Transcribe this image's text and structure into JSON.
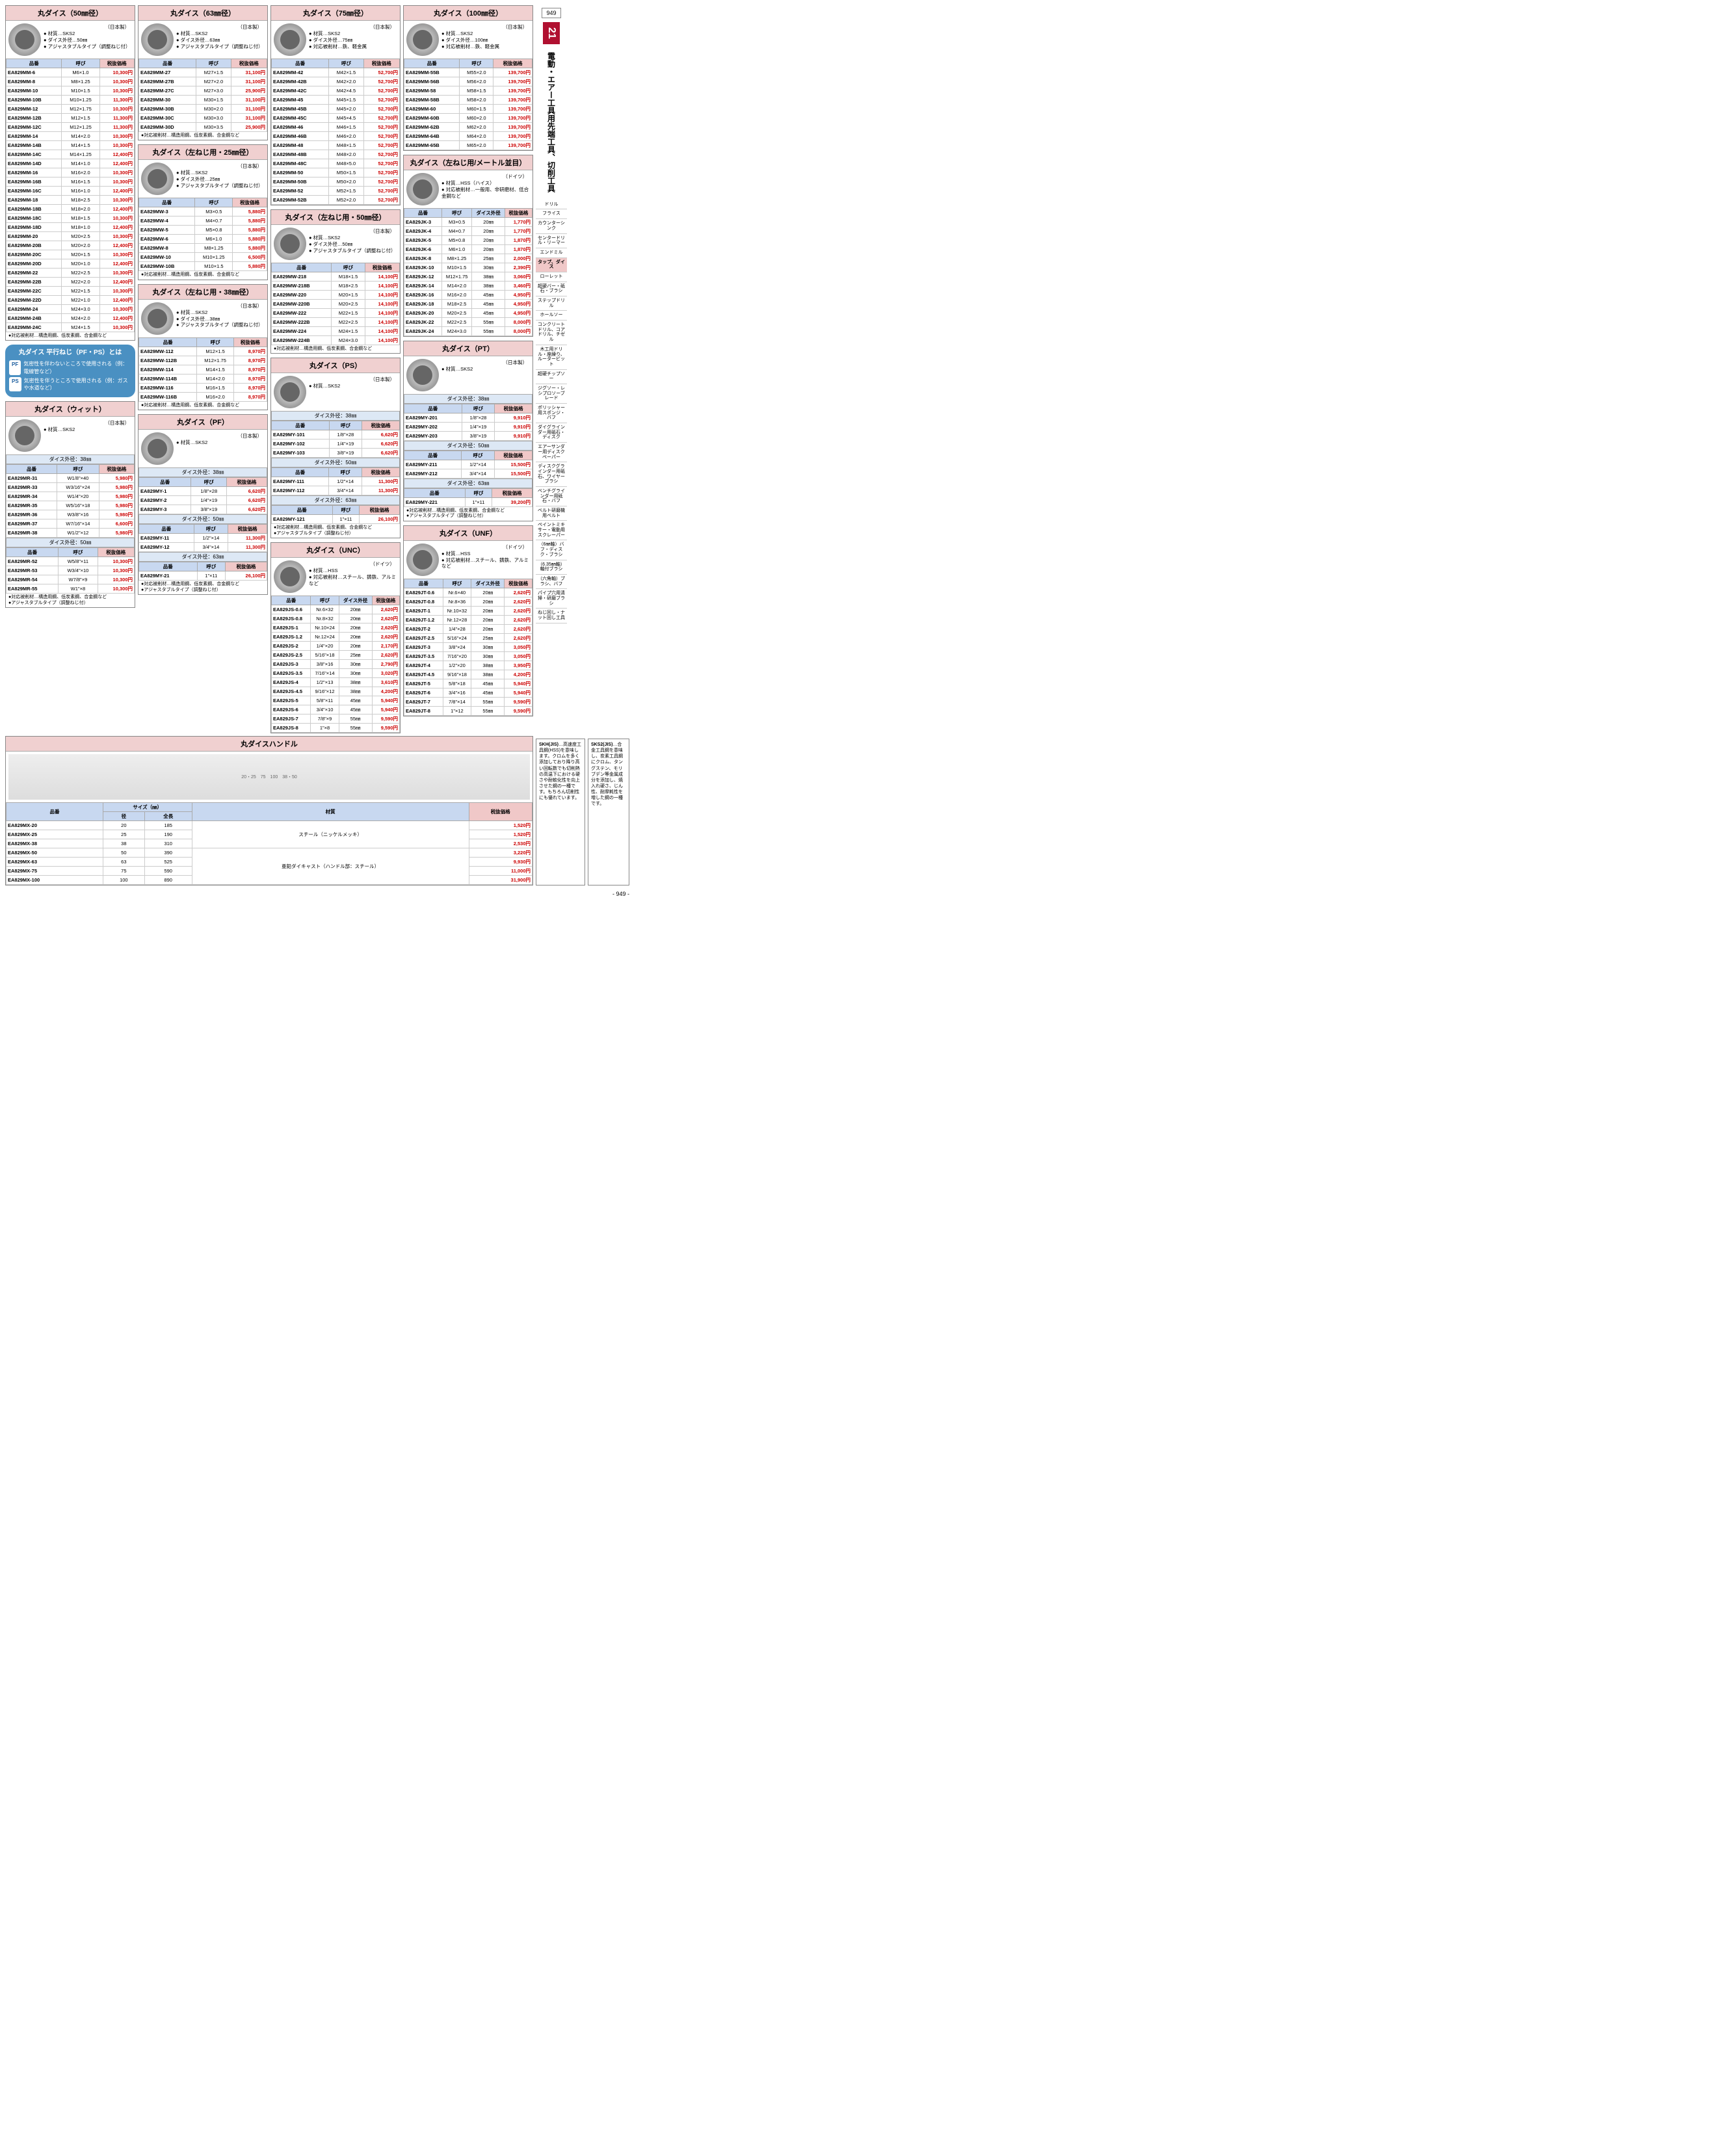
{
  "page_number_top": "949",
  "page_number_bottom": "- 949 -",
  "side_tab_num": "21",
  "side_tab_text": "電動・エアー工具用先端工具、切削工具",
  "side_categories": [
    "ドリル",
    "フライス",
    "カウンターシンク",
    "センタードリル・リーマー",
    "エンドミル",
    {
      "label": "タップ、ダイス",
      "active": true
    },
    "ローレット",
    "超硬バー・砥石・ブラシ",
    "ステップドリル",
    "ホールソー",
    "コンクリートドリル、コアドリル、チゼル",
    "木工用ドリル・座繰り、ルータービット",
    "超硬チップソー",
    "ジグソー・レシプロソーブレード",
    "ポリッシャー用スポンジ・バフ",
    "ダイグラインダー用砥石・ディスク",
    "エアーサンダー用ディスクペーパー",
    "ディスクグラインダー用砥石、ワイヤーブラシ",
    "ベンチグラインダー用砥石・バフ",
    "ベルト研磨機用ベルト",
    "ペイントミキサー・電動用スクレーパー",
    "（6㎜軸）バフ・ディスク・ブラシ",
    "（6.35㎜軸）軸付ブラシ",
    "（六角軸）ブラシ、バフ",
    "パイプ穴用清掃・研磨ブラシ",
    "ねじ回し・ナット回し工具"
  ],
  "columns": {
    "code": "品番",
    "spec": "呼び",
    "price": "税抜価格",
    "od": "ダイス外径"
  },
  "origin_jp": "（日本製）",
  "origin_de": "（ドイツ）",
  "blocks": {
    "d50": {
      "title": "丸ダイス（50㎜径）",
      "bullets": "● 材質…SKS2\n● ダイス外径…50㎜\n● アジャスタブルタイプ（調整ねじ付）",
      "note": "●対応被削材…構造用鋼、低炭素鋼、合金鋼など",
      "rows": [
        [
          "EA829MM-6",
          "M6×1.0",
          "10,300"
        ],
        [
          "EA829MM-8",
          "M8×1.25",
          "10,300"
        ],
        [
          "EA829MM-10",
          "M10×1.5",
          "10,300"
        ],
        [
          "EA829MM-10B",
          "M10×1.25",
          "11,300"
        ],
        [
          "EA829MM-12",
          "M12×1.75",
          "10,300"
        ],
        [
          "EA829MM-12B",
          "M12×1.5",
          "11,300"
        ],
        [
          "EA829MM-12C",
          "M12×1.25",
          "11,300"
        ],
        [
          "EA829MM-14",
          "M14×2.0",
          "10,300"
        ],
        [
          "EA829MM-14B",
          "M14×1.5",
          "10,300"
        ],
        [
          "EA829MM-14C",
          "M14×1.25",
          "12,400"
        ],
        [
          "EA829MM-14D",
          "M14×1.0",
          "12,400"
        ],
        [
          "EA829MM-16",
          "M16×2.0",
          "10,300"
        ],
        [
          "EA829MM-16B",
          "M16×1.5",
          "10,300"
        ],
        [
          "EA829MM-16C",
          "M16×1.0",
          "12,400"
        ],
        [
          "EA829MM-18",
          "M18×2.5",
          "10,300"
        ],
        [
          "EA829MM-18B",
          "M18×2.0",
          "12,400"
        ],
        [
          "EA829MM-18C",
          "M18×1.5",
          "10,300"
        ],
        [
          "EA829MM-18D",
          "M18×1.0",
          "12,400"
        ],
        [
          "EA829MM-20",
          "M20×2.5",
          "10,300"
        ],
        [
          "EA829MM-20B",
          "M20×2.0",
          "12,400"
        ],
        [
          "EA829MM-20C",
          "M20×1.5",
          "10,300"
        ],
        [
          "EA829MM-20D",
          "M20×1.0",
          "12,400"
        ],
        [
          "EA829MM-22",
          "M22×2.5",
          "10,300"
        ],
        [
          "EA829MM-22B",
          "M22×2.0",
          "12,400"
        ],
        [
          "EA829MM-22C",
          "M22×1.5",
          "10,300"
        ],
        [
          "EA829MM-22D",
          "M22×1.0",
          "12,400"
        ],
        [
          "EA829MM-24",
          "M24×3.0",
          "10,300"
        ],
        [
          "EA829MM-24B",
          "M24×2.0",
          "12,400"
        ],
        [
          "EA829MM-24C",
          "M24×1.5",
          "10,300"
        ]
      ]
    },
    "d63": {
      "title": "丸ダイス（63㎜径）",
      "bullets": "● 材質…SKS2\n● ダイス外径…63㎜\n● アジャスタブルタイプ（調整ねじ付）",
      "note": "●対応被削材…構造用鋼、低炭素鋼、合金鋼など",
      "rows": [
        [
          "EA829MM-27",
          "M27×1.5",
          "31,100"
        ],
        [
          "EA829MM-27B",
          "M27×2.0",
          "31,100"
        ],
        [
          "EA829MM-27C",
          "M27×3.0",
          "25,900"
        ],
        [
          "EA829MM-30",
          "M30×1.5",
          "31,100"
        ],
        [
          "EA829MM-30B",
          "M30×2.0",
          "31,100"
        ],
        [
          "EA829MM-30C",
          "M30×3.0",
          "31,100"
        ],
        [
          "EA829MM-30D",
          "M30×3.5",
          "25,900"
        ]
      ]
    },
    "d75": {
      "title": "丸ダイス（75㎜径）",
      "bullets": "● 材質…SKS2\n● ダイス外径…75㎜\n● 対応被削材…鉄、軽金属",
      "rows": [
        [
          "EA829MM-42",
          "M42×1.5",
          "52,700"
        ],
        [
          "EA829MM-42B",
          "M42×2.0",
          "52,700"
        ],
        [
          "EA829MM-42C",
          "M42×4.5",
          "52,700"
        ],
        [
          "EA829MM-45",
          "M45×1.5",
          "52,700"
        ],
        [
          "EA829MM-45B",
          "M45×2.0",
          "52,700"
        ],
        [
          "EA829MM-45C",
          "M45×4.5",
          "52,700"
        ],
        [
          "EA829MM-46",
          "M46×1.5",
          "52,700"
        ],
        [
          "EA829MM-46B",
          "M46×2.0",
          "52,700"
        ],
        [
          "EA829MM-48",
          "M48×1.5",
          "52,700"
        ],
        [
          "EA829MM-48B",
          "M48×2.0",
          "52,700"
        ],
        [
          "EA829MM-48C",
          "M48×5.0",
          "52,700"
        ],
        [
          "EA829MM-50",
          "M50×1.5",
          "52,700"
        ],
        [
          "EA829MM-50B",
          "M50×2.0",
          "52,700"
        ],
        [
          "EA829MM-52",
          "M52×1.5",
          "52,700"
        ],
        [
          "EA829MM-52B",
          "M52×2.0",
          "52,700"
        ]
      ]
    },
    "d100": {
      "title": "丸ダイス（100㎜径）",
      "bullets": "● 材質…SKS2\n● ダイス外径…100㎜\n● 対応被削材…鉄、軽金属",
      "rows": [
        [
          "EA829MM-55B",
          "M55×2.0",
          "139,700"
        ],
        [
          "EA829MM-56B",
          "M56×2.0",
          "139,700"
        ],
        [
          "EA829MM-58",
          "M58×1.5",
          "139,700"
        ],
        [
          "EA829MM-58B",
          "M58×2.0",
          "139,700"
        ],
        [
          "EA829MM-60",
          "M60×1.5",
          "139,700"
        ],
        [
          "EA829MM-60B",
          "M60×2.0",
          "139,700"
        ],
        [
          "EA829MM-62B",
          "M62×2.0",
          "139,700"
        ],
        [
          "EA829MM-64B",
          "M64×2.0",
          "139,700"
        ],
        [
          "EA829MM-65B",
          "M65×2.0",
          "139,700"
        ]
      ]
    },
    "L25": {
      "title": "丸ダイス（左ねじ用・25㎜径）",
      "bullets": "● 材質…SKS2\n● ダイス外径…25㎜\n● アジャスタブルタイプ（調整ねじ付）",
      "note": "●対応被削材…構造用鋼、低炭素鋼、合金鋼など",
      "rows": [
        [
          "EA829MW-3",
          "M3×0.5",
          "5,880"
        ],
        [
          "EA829MW-4",
          "M4×0.7",
          "5,880"
        ],
        [
          "EA829MW-5",
          "M5×0.8",
          "5,880"
        ],
        [
          "EA829MW-6",
          "M6×1.0",
          "5,880"
        ],
        [
          "EA829MW-8",
          "M8×1.25",
          "5,880"
        ],
        [
          "EA829MW-10",
          "M10×1.25",
          "6,500"
        ],
        [
          "EA829MW-10B",
          "M10×1.5",
          "5,880"
        ]
      ]
    },
    "L38": {
      "title": "丸ダイス（左ねじ用・38㎜径）",
      "bullets": "● 材質…SKS2\n● ダイス外径…38㎜\n● アジャスタブルタイプ（調整ねじ付）",
      "note": "●対応被削材…構造用鋼、低炭素鋼、合金鋼など",
      "rows": [
        [
          "EA829MW-112",
          "M12×1.5",
          "8,970"
        ],
        [
          "EA829MW-112B",
          "M12×1.75",
          "8,970"
        ],
        [
          "EA829MW-114",
          "M14×1.5",
          "8,970"
        ],
        [
          "EA829MW-114B",
          "M14×2.0",
          "8,970"
        ],
        [
          "EA829MW-116",
          "M16×1.5",
          "8,970"
        ],
        [
          "EA829MW-116B",
          "M16×2.0",
          "8,970"
        ]
      ]
    },
    "L50": {
      "title": "丸ダイス（左ねじ用・50㎜径）",
      "bullets": "● 材質…SKS2\n● ダイス外径…50㎜\n● アジャスタブルタイプ（調整ねじ付）",
      "note": "●対応被削材…構造用鋼、低炭素鋼、合金鋼など",
      "rows": [
        [
          "EA829MW-218",
          "M18×1.5",
          "14,100"
        ],
        [
          "EA829MW-218B",
          "M18×2.5",
          "14,100"
        ],
        [
          "EA829MW-220",
          "M20×1.5",
          "14,100"
        ],
        [
          "EA829MW-220B",
          "M20×2.5",
          "14,100"
        ],
        [
          "EA829MW-222",
          "M22×1.5",
          "14,100"
        ],
        [
          "EA829MW-222B",
          "M22×2.5",
          "14,100"
        ],
        [
          "EA829MW-224",
          "M24×1.5",
          "14,100"
        ],
        [
          "EA829MW-224B",
          "M24×3.0",
          "14,100"
        ]
      ]
    },
    "Lmetric": {
      "title": "丸ダイス（左ねじ用/メートル並目）",
      "bullets": "● 材質…HSS（ハイス）\n● 対応被削材…一般用、非研磨材、低合金鋼など",
      "rows": [
        [
          "EA829JK-3",
          "M3×0.5",
          "20㎜",
          "1,770"
        ],
        [
          "EA829JK-4",
          "M4×0.7",
          "20㎜",
          "1,770"
        ],
        [
          "EA829JK-5",
          "M5×0.8",
          "20㎜",
          "1,870"
        ],
        [
          "EA829JK-6",
          "M6×1.0",
          "20㎜",
          "1,870"
        ],
        [
          "EA829JK-8",
          "M8×1.25",
          "25㎜",
          "2,000"
        ],
        [
          "EA829JK-10",
          "M10×1.5",
          "30㎜",
          "2,390"
        ],
        [
          "EA829JK-12",
          "M12×1.75",
          "38㎜",
          "3,060"
        ],
        [
          "EA829JK-14",
          "M14×2.0",
          "38㎜",
          "3,460"
        ],
        [
          "EA829JK-16",
          "M16×2.0",
          "45㎜",
          "4,950"
        ],
        [
          "EA829JK-18",
          "M18×2.5",
          "45㎜",
          "4,950"
        ],
        [
          "EA829JK-20",
          "M20×2.5",
          "45㎜",
          "4,950"
        ],
        [
          "EA829JK-22",
          "M22×2.5",
          "55㎜",
          "8,000"
        ],
        [
          "EA829JK-24",
          "M24×3.0",
          "55㎜",
          "8,000"
        ]
      ]
    },
    "info": {
      "title": "丸ダイス 平行ねじ（PF・PS）とは",
      "pf_label": "PF",
      "pf_text": "気密性を伴わないところで使用される（例：電線管など）",
      "ps_label": "PS",
      "ps_text": "気密性を伴うところで使用される（例：ガスや水道など）"
    },
    "wit": {
      "title": "丸ダイス（ウィット）",
      "bullets": "● 材質…SKS2",
      "note": "●対応被削材…構造用鋼、低炭素鋼、合金鋼など\n●アジャスタブルタイプ（調整ねじ付）",
      "bands": [
        "ダイス外径：38㎜",
        "ダイス外径：50㎜"
      ],
      "groups": [
        [
          [
            "EA829MR-31",
            "W1/8\"×40",
            "5,980"
          ],
          [
            "EA829MR-33",
            "W3/16\"×24",
            "5,980"
          ],
          [
            "EA829MR-34",
            "W1/4\"×20",
            "5,980"
          ],
          [
            "EA829MR-35",
            "W5/16\"×18",
            "5,980"
          ],
          [
            "EA829MR-36",
            "W3/8\"×16",
            "5,980"
          ],
          [
            "EA829MR-37",
            "W7/16\"×14",
            "6,600"
          ],
          [
            "EA829MR-38",
            "W1/2\"×12",
            "5,980"
          ]
        ],
        [
          [
            "EA829MR-52",
            "W5/8\"×11",
            "10,300"
          ],
          [
            "EA829MR-53",
            "W3/4\"×10",
            "10,300"
          ],
          [
            "EA829MR-54",
            "W7/8\"×9",
            "10,300"
          ],
          [
            "EA829MR-55",
            "W1\"×8",
            "10,300"
          ]
        ]
      ]
    },
    "pf": {
      "title": "丸ダイス（PF）",
      "bullets": "● 材質…SKS2",
      "note": "●対応被削材…構造用鋼、低炭素鋼、合金鋼など\n●アジャスタブルタイプ（調整ねじ付）",
      "bands": [
        "ダイス外径：38㎜",
        "ダイス外径：50㎜",
        "ダイス外径：63㎜"
      ],
      "groups": [
        [
          [
            "EA829MY-1",
            "1/8\"×28",
            "6,620"
          ],
          [
            "EA829MY-2",
            "1/4\"×19",
            "6,620"
          ],
          [
            "EA829MY-3",
            "3/8\"×19",
            "6,620"
          ]
        ],
        [
          [
            "EA829MY-11",
            "1/2\"×14",
            "11,300"
          ],
          [
            "EA829MY-12",
            "3/4\"×14",
            "11,300"
          ]
        ],
        [
          [
            "EA829MY-21",
            "1\"×11",
            "26,100"
          ]
        ]
      ]
    },
    "ps": {
      "title": "丸ダイス（PS）",
      "bullets": "● 材質…SKS2",
      "note": "●対応被削材…構造用鋼、低炭素鋼、合金鋼など\n●アジャスタブルタイプ（調整ねじ付）",
      "bands": [
        "ダイス外径：38㎜",
        "ダイス外径：50㎜",
        "ダイス外径：63㎜"
      ],
      "groups": [
        [
          [
            "EA829MY-101",
            "1/8\"×28",
            "6,620"
          ],
          [
            "EA829MY-102",
            "1/4\"×19",
            "6,620"
          ],
          [
            "EA829MY-103",
            "3/8\"×19",
            "6,620"
          ]
        ],
        [
          [
            "EA829MY-111",
            "1/2\"×14",
            "11,300"
          ],
          [
            "EA829MY-112",
            "3/4\"×14",
            "11,300"
          ]
        ],
        [
          [
            "EA829MY-121",
            "1\"×11",
            "26,100"
          ]
        ]
      ]
    },
    "pt": {
      "title": "丸ダイス（PT）",
      "bullets": "● 材質…SKS2",
      "note": "●対応被削材…構造用鋼、低炭素鋼、合金鋼など\n●アジャスタブルタイプ（調整ねじ付）",
      "bands": [
        "ダイス外径：38㎜",
        "ダイス外径：50㎜",
        "ダイス外径：63㎜"
      ],
      "groups": [
        [
          [
            "EA829MY-201",
            "1/8\"×28",
            "9,910"
          ],
          [
            "EA829MY-202",
            "1/4\"×19",
            "9,910"
          ],
          [
            "EA829MY-203",
            "3/8\"×19",
            "9,910"
          ]
        ],
        [
          [
            "EA829MY-211",
            "1/2\"×14",
            "15,500"
          ],
          [
            "EA829MY-212",
            "3/4\"×14",
            "15,500"
          ]
        ],
        [
          [
            "EA829MY-221",
            "1\"×11",
            "39,200"
          ]
        ]
      ]
    },
    "unc": {
      "title": "丸ダイス（UNC）",
      "bullets": "● 材質…HSS\n● 対応被削材…スチール、鋳鉄、アルミなど",
      "rows": [
        [
          "EA829JS-0.6",
          "Nr.6×32",
          "20㎜",
          "2,620"
        ],
        [
          "EA829JS-0.8",
          "Nr.8×32",
          "20㎜",
          "2,620"
        ],
        [
          "EA829JS-1",
          "Nr.10×24",
          "20㎜",
          "2,620"
        ],
        [
          "EA829JS-1.2",
          "Nr.12×24",
          "20㎜",
          "2,620"
        ],
        [
          "EA829JS-2",
          "1/4\"×20",
          "20㎜",
          "2,170"
        ],
        [
          "EA829JS-2.5",
          "5/16\"×18",
          "25㎜",
          "2,620"
        ],
        [
          "EA829JS-3",
          "3/8\"×16",
          "30㎜",
          "2,790"
        ],
        [
          "EA829JS-3.5",
          "7/16\"×14",
          "30㎜",
          "3,020"
        ],
        [
          "EA829JS-4",
          "1/2\"×13",
          "38㎜",
          "3,610"
        ],
        [
          "EA829JS-4.5",
          "9/16\"×12",
          "38㎜",
          "4,200"
        ],
        [
          "EA829JS-5",
          "5/8\"×11",
          "45㎜",
          "5,940"
        ],
        [
          "EA829JS-6",
          "3/4\"×10",
          "45㎜",
          "5,940"
        ],
        [
          "EA829JS-7",
          "7/8\"×9",
          "55㎜",
          "9,590"
        ],
        [
          "EA829JS-8",
          "1\"×8",
          "55㎜",
          "9,590"
        ]
      ]
    },
    "unf": {
      "title": "丸ダイス（UNF）",
      "bullets": "● 材質…HSS\n● 対応被削材…スチール、鋳鉄、アルミなど",
      "rows": [
        [
          "EA829JT-0.6",
          "Nr.6×40",
          "20㎜",
          "2,620"
        ],
        [
          "EA829JT-0.8",
          "Nr.8×36",
          "20㎜",
          "2,620"
        ],
        [
          "EA829JT-1",
          "Nr.10×32",
          "20㎜",
          "2,620"
        ],
        [
          "EA829JT-1.2",
          "Nr.12×28",
          "20㎜",
          "2,620"
        ],
        [
          "EA829JT-2",
          "1/4\"×28",
          "20㎜",
          "2,620"
        ],
        [
          "EA829JT-2.5",
          "5/16\"×24",
          "25㎜",
          "2,620"
        ],
        [
          "EA829JT-3",
          "3/8\"×24",
          "30㎜",
          "3,050"
        ],
        [
          "EA829JT-3.5",
          "7/16\"×20",
          "30㎜",
          "3,050"
        ],
        [
          "EA829JT-4",
          "1/2\"×20",
          "38㎜",
          "3,950"
        ],
        [
          "EA829JT-4.5",
          "9/16\"×18",
          "38㎜",
          "4,200"
        ],
        [
          "EA829JT-5",
          "5/8\"×18",
          "45㎜",
          "5,940"
        ],
        [
          "EA829JT-6",
          "3/4\"×16",
          "45㎜",
          "5,940"
        ],
        [
          "EA829JT-7",
          "7/8\"×14",
          "55㎜",
          "9,590"
        ],
        [
          "EA829JT-8",
          "1\"×12",
          "55㎜",
          "9,590"
        ]
      ]
    },
    "handle": {
      "title": "丸ダイスハンドル",
      "cols": [
        "品番",
        "サイズ（㎜）",
        "",
        "材質",
        "税抜価格"
      ],
      "subcols": [
        "径",
        "全長"
      ],
      "material1": "スチール（ニッケルメッキ）",
      "material2": "亜鉛ダイキャスト（ハンドル部：スチール）",
      "rows": [
        [
          "EA829MX-20",
          "20",
          "185",
          "1,520"
        ],
        [
          "EA829MX-25",
          "25",
          "190",
          "1,520"
        ],
        [
          "EA829MX-38",
          "38",
          "310",
          "2,530"
        ],
        [
          "EA829MX-50",
          "50",
          "390",
          "3,220"
        ],
        [
          "EA829MX-63",
          "63",
          "525",
          "9,930"
        ],
        [
          "EA829MX-75",
          "75",
          "590",
          "11,000"
        ],
        [
          "EA829MX-100",
          "100",
          "890",
          "31,900"
        ]
      ]
    },
    "skh": {
      "label": "SKH(JIS)",
      "text": "…高速度工具鋼(HSS)を意味します。クロムを多く添加しており降り高い回転数でも切削熱の高温下における硬さや耐軟化性を向上させた鋼の一種です。もちろん切削性にも優れています。"
    },
    "sks2": {
      "label": "SKS2(JIS)",
      "text": "…合金工具鋼を意味し、炭素工具鋼にクロム、タングステン、モリブデン等金属成分を添加し、焼入れ硬さ、じん性、耐摩耗性を増した鋼の一種です。"
    }
  }
}
